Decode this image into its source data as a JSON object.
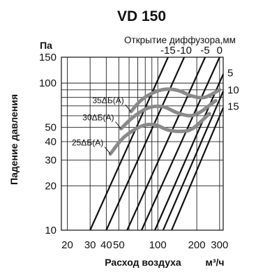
{
  "chart_data": {
    "type": "line",
    "title": "VD 150",
    "xlabel": "Расход воздуха",
    "xunit": "м³/ч",
    "ylabel": "Падение давления",
    "yunit": "Па",
    "x_scale": "log",
    "y_scale": "log",
    "xlim": [
      18,
      320
    ],
    "ylim": [
      10,
      150
    ],
    "x_ticks": [
      20,
      30,
      40,
      50,
      100,
      200,
      300
    ],
    "y_ticks": [
      10,
      20,
      30,
      40,
      50,
      100,
      150
    ],
    "grid": true,
    "opening_label": "Открытие диффузора,мм",
    "series": [
      {
        "name": "-15",
        "x": [
          30,
          120
        ],
        "y": [
          10,
          150
        ]
      },
      {
        "name": "-10",
        "x": [
          40,
          160
        ],
        "y": [
          10,
          150
        ]
      },
      {
        "name": "-5",
        "x": [
          58,
          232
        ],
        "y": [
          10,
          150
        ]
      },
      {
        "name": "0",
        "x": [
          75,
          300
        ],
        "y": [
          10,
          150
        ]
      },
      {
        "name": "5",
        "x": [
          95,
          320
        ],
        "y": [
          10,
          115
        ]
      },
      {
        "name": "10",
        "x": [
          110,
          320
        ],
        "y": [
          10,
          88
        ]
      },
      {
        "name": "15",
        "x": [
          128,
          320
        ],
        "y": [
          10,
          68
        ]
      }
    ],
    "noise_curves": [
      {
        "name": "35ΔБ(А)",
        "x": [
          62,
          75,
          95,
          120,
          150,
          180,
          230,
          300
        ],
        "y": [
          64,
          77,
          87,
          91,
          88,
          82,
          80,
          90
        ]
      },
      {
        "name": "30ΔБ(А)",
        "x": [
          52,
          65,
          85,
          110,
          140,
          175,
          210,
          280
        ],
        "y": [
          49,
          59,
          68,
          69,
          63,
          60,
          63,
          76
        ]
      },
      {
        "name": "25ΔБ(А)",
        "x": [
          43,
          55,
          75,
          95,
          120,
          150,
          185,
          250
        ],
        "y": [
          33,
          43,
          51,
          52,
          48,
          47,
          49,
          62
        ]
      }
    ]
  }
}
